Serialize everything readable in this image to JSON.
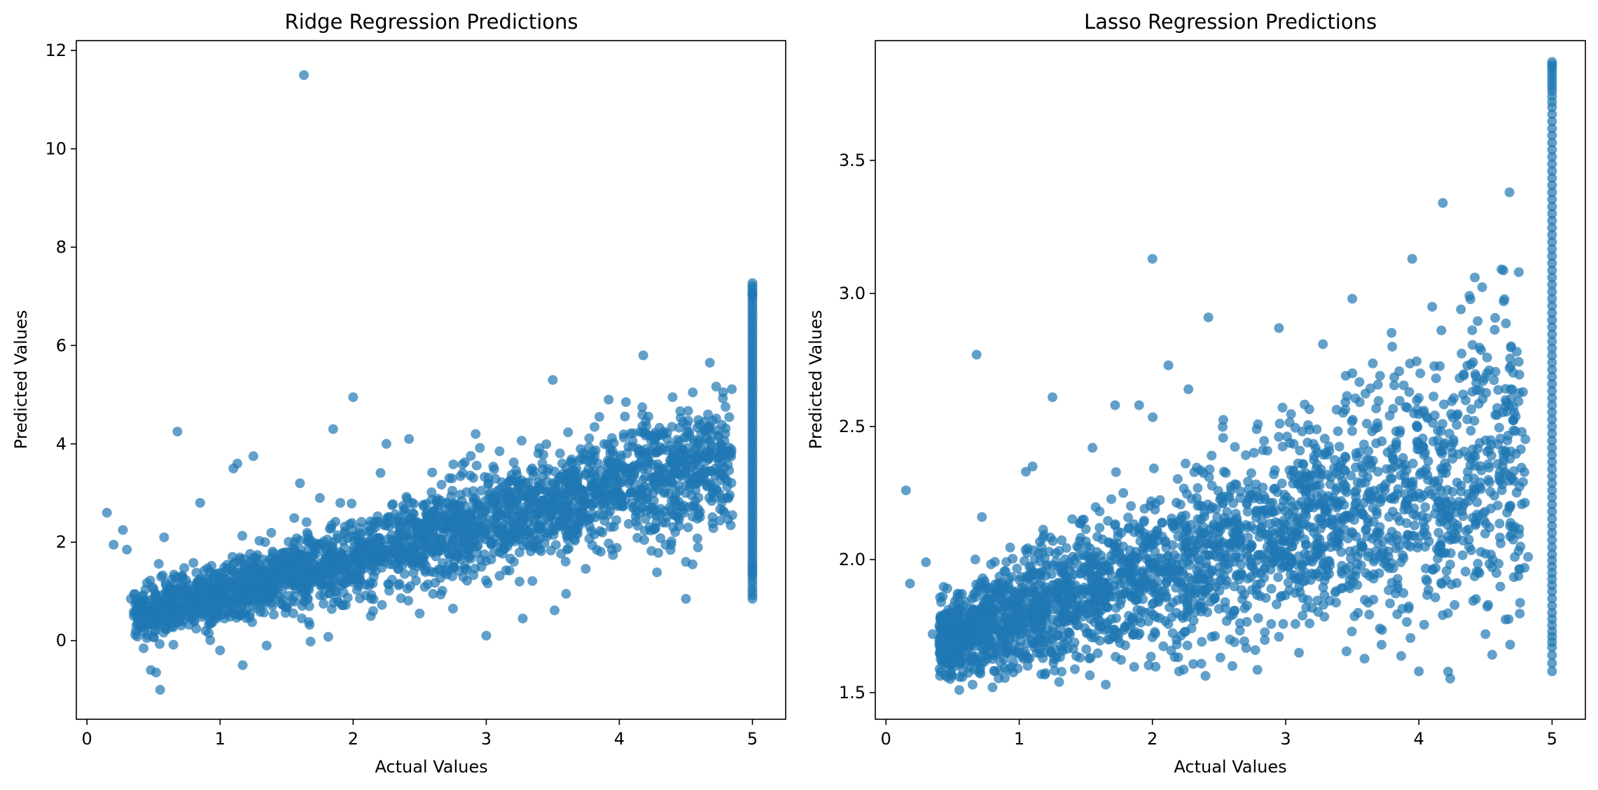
{
  "chart_data": [
    {
      "type": "scatter",
      "title": "Ridge Regression Predictions",
      "xlabel": "Actual Values",
      "ylabel": "Predicted Values",
      "xlim": [
        -0.08,
        5.25
      ],
      "ylim": [
        -1.6,
        12.2
      ],
      "xticks": [
        0,
        1,
        2,
        3,
        4,
        5
      ],
      "xtick_labels": [
        "0",
        "1",
        "2",
        "3",
        "4",
        "5"
      ],
      "yticks": [
        0,
        2,
        4,
        6,
        8,
        10,
        12
      ],
      "ytick_labels": [
        "0",
        "2",
        "4",
        "6",
        "8",
        "10",
        "12"
      ],
      "grid": false,
      "marker_color": "#1f77b4",
      "marker_alpha": 0.7,
      "points": [
        [
          0.15,
          2.6
        ],
        [
          0.2,
          1.95
        ],
        [
          0.27,
          2.25
        ],
        [
          0.3,
          1.85
        ],
        [
          0.33,
          0.85
        ],
        [
          0.45,
          0.05
        ],
        [
          0.48,
          -0.6
        ],
        [
          0.52,
          -0.65
        ],
        [
          0.55,
          -1.0
        ],
        [
          0.58,
          2.1
        ],
        [
          0.68,
          4.25
        ],
        [
          0.85,
          2.8
        ],
        [
          1.0,
          -0.2
        ],
        [
          1.1,
          3.5
        ],
        [
          1.13,
          3.6
        ],
        [
          1.17,
          -0.5
        ],
        [
          1.25,
          3.75
        ],
        [
          1.35,
          -0.1
        ],
        [
          1.6,
          3.2
        ],
        [
          1.63,
          11.5
        ],
        [
          1.68,
          -0.02
        ],
        [
          1.75,
          2.9
        ],
        [
          1.85,
          4.3
        ],
        [
          2.0,
          4.95
        ],
        [
          2.15,
          0.6
        ],
        [
          2.25,
          4.0
        ],
        [
          2.42,
          4.1
        ],
        [
          2.5,
          0.55
        ],
        [
          2.6,
          0.95
        ],
        [
          2.75,
          0.65
        ],
        [
          2.92,
          4.2
        ],
        [
          3.0,
          0.1
        ],
        [
          3.1,
          3.85
        ],
        [
          3.25,
          1.2
        ],
        [
          3.5,
          5.3
        ],
        [
          3.6,
          0.95
        ],
        [
          3.85,
          4.55
        ],
        [
          3.92,
          4.9
        ],
        [
          4.05,
          4.85
        ],
        [
          4.18,
          5.8
        ],
        [
          4.4,
          4.95
        ],
        [
          4.5,
          0.85
        ],
        [
          4.5,
          1.6
        ],
        [
          4.55,
          1.55
        ],
        [
          4.68,
          5.65
        ],
        [
          4.78,
          5.05
        ]
      ],
      "column_at_5": [
        0.85,
        1.05,
        1.3,
        1.45,
        1.6,
        1.8,
        2.0,
        2.2,
        2.4,
        2.6,
        2.8,
        3.0,
        3.2,
        3.4,
        3.6,
        3.8,
        4.0,
        4.2,
        4.4,
        4.6,
        4.8,
        5.0,
        5.2,
        5.4,
        5.6,
        5.8,
        6.0,
        6.2,
        6.4,
        6.6,
        6.8,
        7.0,
        7.1,
        7.27
      ]
    },
    {
      "type": "scatter",
      "title": "Lasso Regression Predictions",
      "xlabel": "Actual Values",
      "ylabel": "Predicted Values",
      "xlim": [
        -0.08,
        5.25
      ],
      "ylim": [
        1.4,
        3.95
      ],
      "xticks": [
        0,
        1,
        2,
        3,
        4,
        5
      ],
      "xtick_labels": [
        "0",
        "1",
        "2",
        "3",
        "4",
        "5"
      ],
      "yticks": [
        1.5,
        2.0,
        2.5,
        3.0,
        3.5
      ],
      "ytick_labels": [
        "1.5",
        "2.0",
        "2.5",
        "3.0",
        "3.5"
      ],
      "grid": false,
      "marker_color": "#1f77b4",
      "marker_alpha": 0.7,
      "points": [
        [
          0.15,
          2.26
        ],
        [
          0.18,
          1.91
        ],
        [
          0.3,
          1.99
        ],
        [
          0.35,
          1.72
        ],
        [
          0.55,
          1.51
        ],
        [
          0.65,
          1.53
        ],
        [
          0.68,
          2.77
        ],
        [
          0.72,
          2.16
        ],
        [
          0.8,
          1.52
        ],
        [
          1.05,
          2.33
        ],
        [
          1.1,
          2.35
        ],
        [
          1.25,
          2.61
        ],
        [
          1.3,
          1.54
        ],
        [
          1.55,
          2.42
        ],
        [
          1.65,
          1.53
        ],
        [
          1.72,
          2.58
        ],
        [
          1.9,
          2.58
        ],
        [
          2.0,
          3.13
        ],
        [
          2.12,
          2.73
        ],
        [
          2.2,
          1.58
        ],
        [
          2.27,
          2.64
        ],
        [
          2.42,
          2.91
        ],
        [
          2.6,
          1.6
        ],
        [
          2.95,
          2.87
        ],
        [
          3.1,
          1.65
        ],
        [
          3.5,
          2.98
        ],
        [
          3.72,
          1.68
        ],
        [
          3.8,
          2.8
        ],
        [
          3.95,
          3.13
        ],
        [
          4.0,
          1.58
        ],
        [
          4.1,
          2.95
        ],
        [
          4.18,
          3.34
        ],
        [
          4.42,
          3.06
        ],
        [
          4.5,
          1.72
        ],
        [
          4.52,
          1.83
        ],
        [
          4.68,
          3.38
        ],
        [
          4.75,
          3.08
        ],
        [
          4.82,
          2.01
        ]
      ],
      "column_at_5": [
        1.58,
        1.67,
        1.73,
        1.8,
        1.88,
        1.95,
        2.02,
        2.1,
        2.18,
        2.26,
        2.34,
        2.42,
        2.5,
        2.58,
        2.66,
        2.74,
        2.82,
        2.9,
        2.98,
        3.06,
        3.14,
        3.22,
        3.3,
        3.38,
        3.46,
        3.54,
        3.62,
        3.7,
        3.76,
        3.8,
        3.84,
        3.87
      ]
    }
  ]
}
